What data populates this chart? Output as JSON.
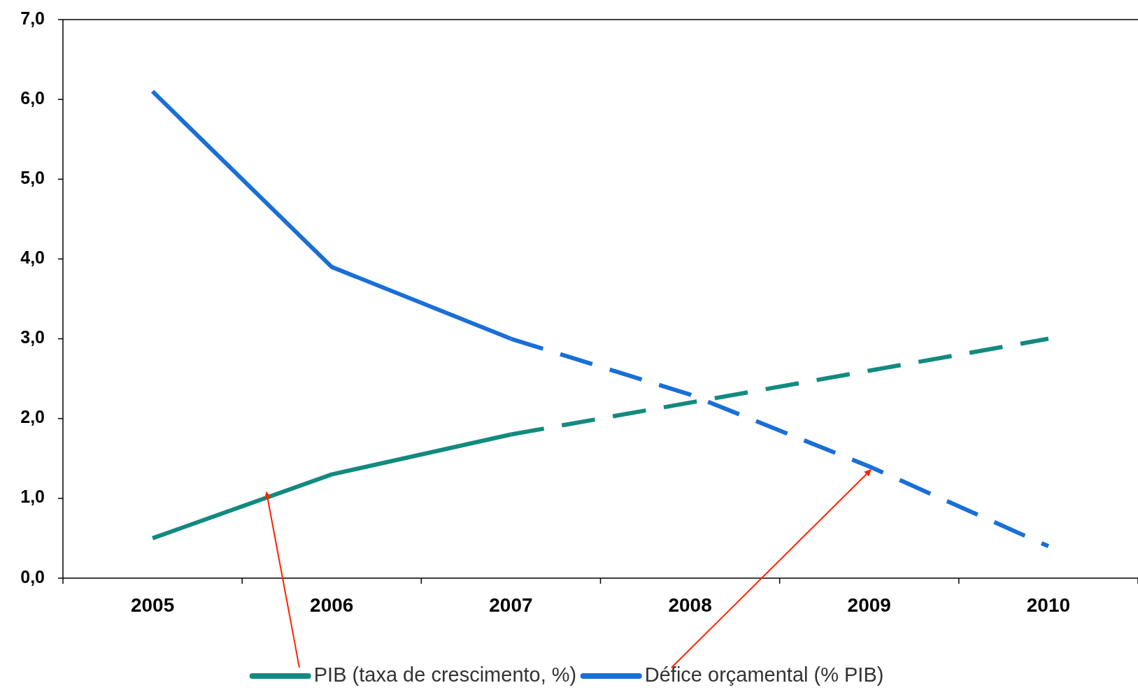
{
  "chart_data": {
    "type": "line",
    "categories": [
      "2005",
      "2006",
      "2007",
      "2008",
      "2009",
      "2010"
    ],
    "series": [
      {
        "name": "PIB (taxa de crescimento, %)",
        "color": "#138a80",
        "line_style": "solid",
        "values": [
          0.5,
          1.3,
          1.8,
          null,
          null,
          null
        ]
      },
      {
        "name": "Défice orçamental (% PIB)",
        "color": "#1a6fd6",
        "line_style": "solid",
        "values": [
          6.1,
          3.9,
          3.0,
          null,
          null,
          null
        ]
      },
      {
        "color": "#138a80",
        "line_style": "dashed",
        "values": [
          null,
          null,
          1.8,
          2.2,
          2.6,
          3.0
        ]
      },
      {
        "color": "#1a6fd6",
        "line_style": "dashed",
        "values": [
          null,
          null,
          3.0,
          2.3,
          1.4,
          0.4
        ]
      }
    ],
    "ylim": [
      0,
      7
    ],
    "yticks": [
      {
        "value": 0,
        "label": "0,0"
      },
      {
        "value": 1,
        "label": "1,0"
      },
      {
        "value": 2,
        "label": "2,0"
      },
      {
        "value": 3,
        "label": "3,0"
      },
      {
        "value": 4,
        "label": "4,0"
      },
      {
        "value": 5,
        "label": "5,0"
      },
      {
        "value": 6,
        "label": "6,0"
      },
      {
        "value": 7,
        "label": "7,0"
      }
    ],
    "grid": false,
    "legend": "bottom",
    "marker": "none"
  }
}
